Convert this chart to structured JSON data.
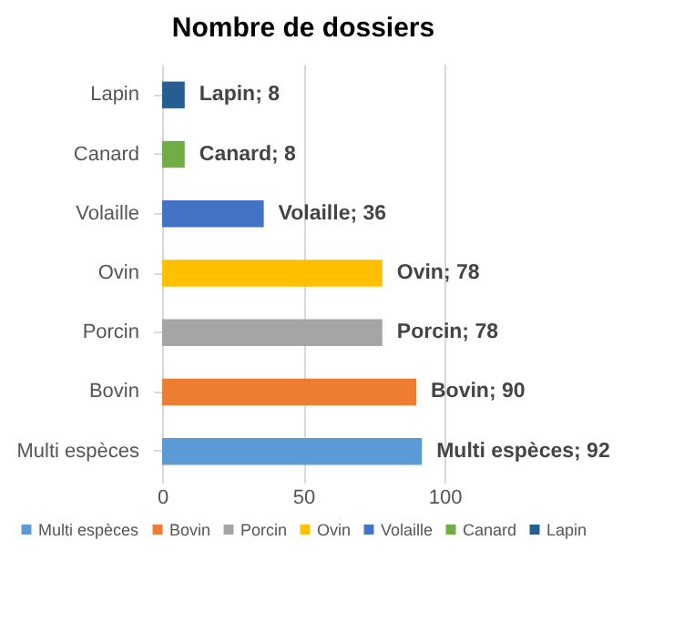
{
  "chart_data": {
    "type": "bar",
    "orientation": "horizontal",
    "stacked": true,
    "title": "Nombre de dossiers",
    "categories": [
      "Lapin",
      "Canard",
      "Volaille",
      "Ovin",
      "Porcin",
      "Bovin",
      "Multi espèces"
    ],
    "series": [
      {
        "name": "Multi espèces",
        "color": "#5b9bd5",
        "values": [
          null,
          null,
          null,
          null,
          null,
          null,
          92
        ],
        "value_labels": [
          null,
          null,
          null,
          null,
          null,
          null,
          "Multi espèces; 92"
        ]
      },
      {
        "name": "Bovin",
        "color": "#ed7d31",
        "values": [
          null,
          null,
          null,
          null,
          null,
          90,
          null
        ],
        "value_labels": [
          null,
          null,
          null,
          null,
          null,
          "Bovin; 90",
          null
        ]
      },
      {
        "name": "Porcin",
        "color": "#a5a5a5",
        "values": [
          null,
          null,
          null,
          null,
          78,
          null,
          null
        ],
        "value_labels": [
          null,
          null,
          null,
          null,
          "Porcin; 78",
          null,
          null
        ]
      },
      {
        "name": "Ovin",
        "color": "#ffc000",
        "values": [
          null,
          null,
          null,
          78,
          null,
          null,
          null
        ],
        "value_labels": [
          null,
          null,
          null,
          "Ovin; 78",
          null,
          null,
          null
        ]
      },
      {
        "name": "Volaille",
        "color": "#4472c4",
        "values": [
          null,
          null,
          36,
          null,
          null,
          null,
          null
        ],
        "value_labels": [
          null,
          null,
          "Volaille; 36",
          null,
          null,
          null,
          null
        ]
      },
      {
        "name": "Canard",
        "color": "#70ad47",
        "values": [
          null,
          8,
          null,
          null,
          null,
          null,
          null
        ],
        "value_labels": [
          null,
          "Canard; 8",
          null,
          null,
          null,
          null,
          null
        ]
      },
      {
        "name": "Lapin",
        "color": "#255e91",
        "values": [
          8,
          null,
          null,
          null,
          null,
          null,
          null
        ],
        "value_labels": [
          "Lapin; 8",
          null,
          null,
          null,
          null,
          null,
          null
        ]
      }
    ],
    "xlim": [
      0,
      100
    ],
    "xticks": [
      0,
      50,
      100
    ],
    "grid": "x",
    "legend": "bottom"
  }
}
